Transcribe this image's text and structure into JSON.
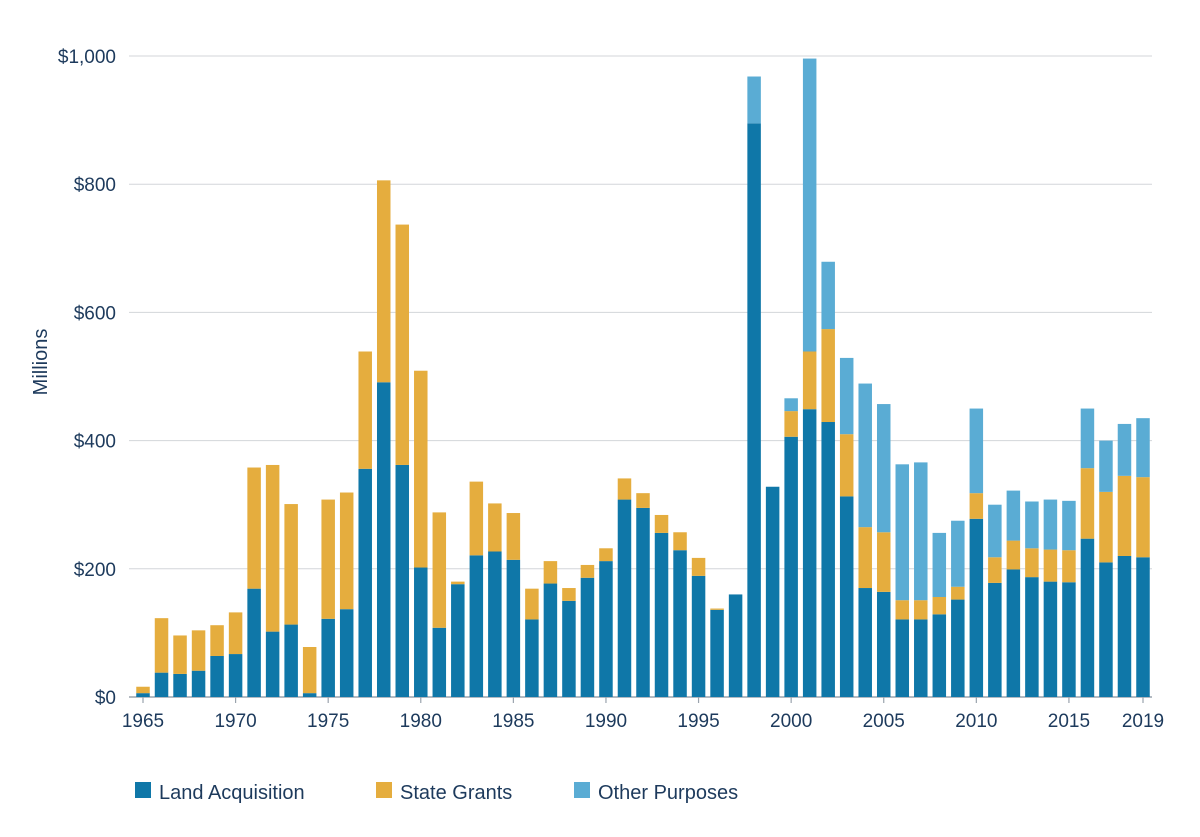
{
  "chart_data": {
    "type": "bar",
    "stacked": true,
    "title": "",
    "xlabel": "",
    "ylabel": "Millions",
    "ylim": [
      0,
      1000
    ],
    "yticks": [
      0,
      200,
      400,
      600,
      800,
      1000
    ],
    "ytick_labels": [
      "$0",
      "$200",
      "$400",
      "$600",
      "$800",
      "$1,000"
    ],
    "xticks": [
      "1965",
      "1970",
      "1975",
      "1980",
      "1985",
      "1990",
      "1995",
      "2000",
      "2005",
      "2010",
      "2015",
      "2019"
    ],
    "grid": true,
    "legend_position": "bottom-left",
    "categories": [
      "1965",
      "1966",
      "1967",
      "1968",
      "1969",
      "1970",
      "1971",
      "1972",
      "1973",
      "1974",
      "1975",
      "1976",
      "1977",
      "1978",
      "1979",
      "1980",
      "1981",
      "1982",
      "1983",
      "1984",
      "1985",
      "1986",
      "1987",
      "1988",
      "1989",
      "1990",
      "1991",
      "1992",
      "1993",
      "1994",
      "1995",
      "1996",
      "1997",
      "1998",
      "1999",
      "2000",
      "2001",
      "2002",
      "2003",
      "2004",
      "2005",
      "2006",
      "2007",
      "2008",
      "2009",
      "2010",
      "2011",
      "2012",
      "2013",
      "2014",
      "2015",
      "2016",
      "2017",
      "2018",
      "2019"
    ],
    "series": [
      {
        "name": "Land Acquisition",
        "color": "#0f77a8",
        "values": [
          6,
          38,
          36,
          41,
          64,
          67,
          169,
          102,
          113,
          6,
          122,
          137,
          356,
          491,
          362,
          202,
          108,
          176,
          221,
          227,
          214,
          121,
          177,
          150,
          186,
          212,
          308,
          295,
          256,
          229,
          189,
          136,
          160,
          895,
          328,
          406,
          449,
          429,
          313,
          170,
          164,
          121,
          121,
          129,
          152,
          278,
          178,
          199,
          187,
          180,
          179,
          247,
          210,
          220,
          218
        ]
      },
      {
        "name": "State Grants",
        "color": "#e5ad3e",
        "values": [
          10,
          85,
          60,
          63,
          48,
          65,
          189,
          260,
          188,
          72,
          186,
          182,
          183,
          315,
          375,
          307,
          180,
          4,
          115,
          75,
          73,
          48,
          35,
          20,
          20,
          20,
          33,
          23,
          28,
          28,
          28,
          2,
          0,
          0,
          0,
          40,
          90,
          145,
          97,
          95,
          93,
          30,
          30,
          27,
          20,
          40,
          40,
          45,
          45,
          50,
          50,
          110,
          110,
          125,
          125
        ]
      },
      {
        "name": "Other Purposes",
        "color": "#5aacd4",
        "values": [
          0,
          0,
          0,
          0,
          0,
          0,
          0,
          0,
          0,
          0,
          0,
          0,
          0,
          0,
          0,
          0,
          0,
          0,
          0,
          0,
          0,
          0,
          0,
          0,
          0,
          0,
          0,
          0,
          0,
          0,
          0,
          0,
          0,
          73,
          0,
          20,
          457,
          105,
          119,
          224,
          200,
          212,
          215,
          100,
          103,
          132,
          82,
          78,
          73,
          78,
          77,
          93,
          80,
          81,
          92
        ]
      }
    ]
  }
}
